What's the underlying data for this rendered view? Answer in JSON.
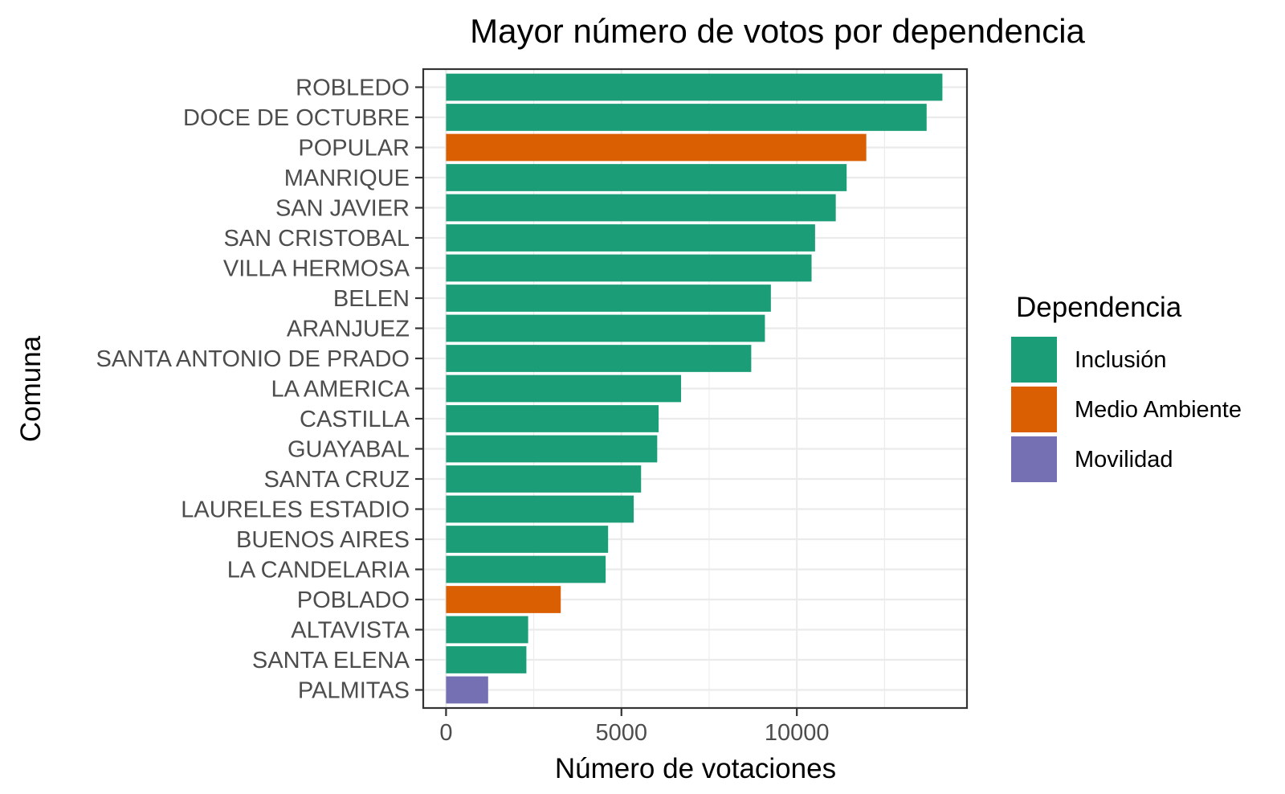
{
  "chart_data": {
    "type": "bar",
    "orientation": "horizontal",
    "title": "Mayor número de votos por dependencia",
    "xlabel": "Número de votaciones",
    "ylabel": "Comuna",
    "xlim": [
      -650,
      14850
    ],
    "x_ticks": [
      0,
      5000,
      10000
    ],
    "x_tick_labels": [
      "0",
      "5000",
      "10000"
    ],
    "grid": true,
    "legend": {
      "title": "Dependencia",
      "position": "right",
      "entries": [
        {
          "label": "Inclusión",
          "color": "#1b9e77"
        },
        {
          "label": "Medio Ambiente",
          "color": "#d95f02"
        },
        {
          "label": "Movilidad",
          "color": "#7570b3"
        }
      ]
    },
    "categories": [
      "ROBLEDO",
      "DOCE DE OCTUBRE",
      "POPULAR",
      "MANRIQUE",
      "SAN JAVIER",
      "SAN CRISTOBAL",
      "VILLA HERMOSA",
      "BELEN",
      "ARANJUEZ",
      "SANTA ANTONIO DE PRADO",
      "LA AMERICA",
      "CASTILLA",
      "GUAYABAL",
      "SANTA CRUZ",
      "LAURELES ESTADIO",
      "BUENOS AIRES",
      "LA CANDELARIA",
      "POBLADO",
      "ALTAVISTA",
      "SANTA ELENA",
      "PALMITAS"
    ],
    "values": [
      14150,
      13700,
      11980,
      11420,
      11110,
      10520,
      10420,
      9260,
      9090,
      8700,
      6700,
      6060,
      6020,
      5560,
      5350,
      4620,
      4550,
      3270,
      2340,
      2290,
      1200
    ],
    "dependencia": [
      "Inclusión",
      "Inclusión",
      "Medio Ambiente",
      "Inclusión",
      "Inclusión",
      "Inclusión",
      "Inclusión",
      "Inclusión",
      "Inclusión",
      "Inclusión",
      "Inclusión",
      "Inclusión",
      "Inclusión",
      "Inclusión",
      "Inclusión",
      "Inclusión",
      "Inclusión",
      "Medio Ambiente",
      "Inclusión",
      "Inclusión",
      "Movilidad"
    ]
  }
}
